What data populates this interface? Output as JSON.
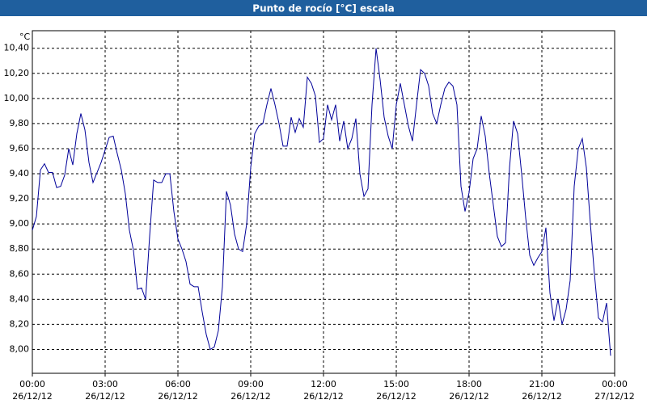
{
  "chart_data": {
    "type": "line",
    "title": "Punto de rocío [°C] escala",
    "ylabel": "°C",
    "x": [
      0,
      10,
      20,
      30,
      40,
      50,
      60,
      70,
      80,
      90,
      100,
      110,
      120,
      130,
      140,
      150,
      160,
      170,
      180,
      190,
      200,
      210,
      220,
      230,
      240,
      250,
      260,
      270,
      280,
      290,
      300,
      310,
      320,
      330,
      340,
      350,
      360,
      370,
      380,
      390,
      400,
      410,
      420,
      430,
      440,
      450,
      460,
      470,
      480,
      490,
      500,
      510,
      520,
      530,
      540,
      550,
      560,
      570,
      580,
      590,
      600,
      610,
      620,
      630,
      640,
      650,
      660,
      670,
      680,
      690,
      700,
      710,
      720,
      730,
      740,
      750,
      760,
      770,
      780,
      790,
      800,
      810,
      820,
      830,
      840,
      850,
      860,
      870,
      880,
      890,
      900,
      910,
      920,
      930,
      940,
      950,
      960,
      970,
      980,
      990,
      1000,
      1010,
      1020,
      1030,
      1040,
      1050,
      1060,
      1070,
      1080,
      1090,
      1100,
      1110,
      1120,
      1130,
      1140,
      1150,
      1160,
      1170,
      1180,
      1190,
      1200,
      1210,
      1220,
      1230,
      1240,
      1250,
      1260,
      1270,
      1280,
      1290,
      1300,
      1310,
      1320,
      1330,
      1340,
      1350,
      1360,
      1370,
      1380,
      1390,
      1400,
      1410,
      1420,
      1430
    ],
    "series": [
      {
        "name": "Punto de rocío",
        "color": "#000099",
        "values": [
          8.95,
          9.06,
          9.43,
          9.48,
          9.41,
          9.41,
          9.29,
          9.3,
          9.39,
          9.6,
          9.47,
          9.72,
          9.88,
          9.75,
          9.49,
          9.33,
          9.41,
          9.49,
          9.59,
          9.69,
          9.7,
          9.56,
          9.43,
          9.24,
          8.95,
          8.79,
          8.48,
          8.49,
          8.4,
          8.9,
          9.35,
          9.33,
          9.33,
          9.4,
          9.4,
          9.1,
          8.88,
          8.8,
          8.7,
          8.52,
          8.5,
          8.5,
          8.3,
          8.12,
          8.0,
          8.02,
          8.15,
          8.5,
          9.26,
          9.15,
          8.92,
          8.8,
          8.78,
          9.0,
          9.45,
          9.72,
          9.78,
          9.8,
          9.95,
          10.08,
          9.95,
          9.8,
          9.62,
          9.62,
          9.85,
          9.73,
          9.84,
          9.77,
          10.17,
          10.12,
          10.02,
          9.65,
          9.68,
          9.95,
          9.83,
          9.95,
          9.66,
          9.82,
          9.6,
          9.68,
          9.84,
          9.4,
          9.22,
          9.28,
          9.95,
          10.4,
          10.15,
          9.85,
          9.7,
          9.6,
          9.95,
          10.12,
          9.95,
          9.78,
          9.66,
          9.95,
          10.23,
          10.2,
          10.1,
          9.88,
          9.8,
          9.95,
          10.08,
          10.13,
          10.1,
          9.95,
          9.3,
          9.1,
          9.25,
          9.52,
          9.6,
          9.86,
          9.7,
          9.4,
          9.15,
          8.9,
          8.82,
          8.85,
          9.45,
          9.82,
          9.72,
          9.4,
          9.05,
          8.75,
          8.67,
          8.73,
          8.78,
          8.97,
          8.45,
          8.23,
          8.4,
          8.2,
          8.32,
          8.55,
          9.3,
          9.6,
          9.68,
          9.45,
          9.0,
          8.6,
          8.25,
          8.22,
          8.37,
          7.95
        ]
      }
    ],
    "xlim": [
      0,
      1440
    ],
    "xticks": [
      {
        "value": 0,
        "label": "00:00",
        "date": "26/12/12"
      },
      {
        "value": 180,
        "label": "03:00",
        "date": "26/12/12"
      },
      {
        "value": 360,
        "label": "06:00",
        "date": "26/12/12"
      },
      {
        "value": 540,
        "label": "09:00",
        "date": "26/12/12"
      },
      {
        "value": 720,
        "label": "12:00",
        "date": "26/12/12"
      },
      {
        "value": 900,
        "label": "15:00",
        "date": "26/12/12"
      },
      {
        "value": 1080,
        "label": "18:00",
        "date": "26/12/12"
      },
      {
        "value": 1260,
        "label": "21:00",
        "date": "26/12/12"
      },
      {
        "value": 1440,
        "label": "00:00",
        "date": "27/12/12"
      }
    ],
    "ylim": [
      7.81,
      10.54
    ],
    "yticks": [
      {
        "value": 8.0,
        "label": "8,00"
      },
      {
        "value": 8.2,
        "label": "8,20"
      },
      {
        "value": 8.4,
        "label": "8,40"
      },
      {
        "value": 8.6,
        "label": "8,60"
      },
      {
        "value": 8.8,
        "label": "8,80"
      },
      {
        "value": 9.0,
        "label": "9,00"
      },
      {
        "value": 9.2,
        "label": "9,20"
      },
      {
        "value": 9.4,
        "label": "9,40"
      },
      {
        "value": 9.6,
        "label": "9,60"
      },
      {
        "value": 9.8,
        "label": "9,80"
      },
      {
        "value": 10.0,
        "label": "10,00"
      },
      {
        "value": 10.2,
        "label": "10,20"
      },
      {
        "value": 10.4,
        "label": "10,40"
      }
    ],
    "grid": true
  }
}
